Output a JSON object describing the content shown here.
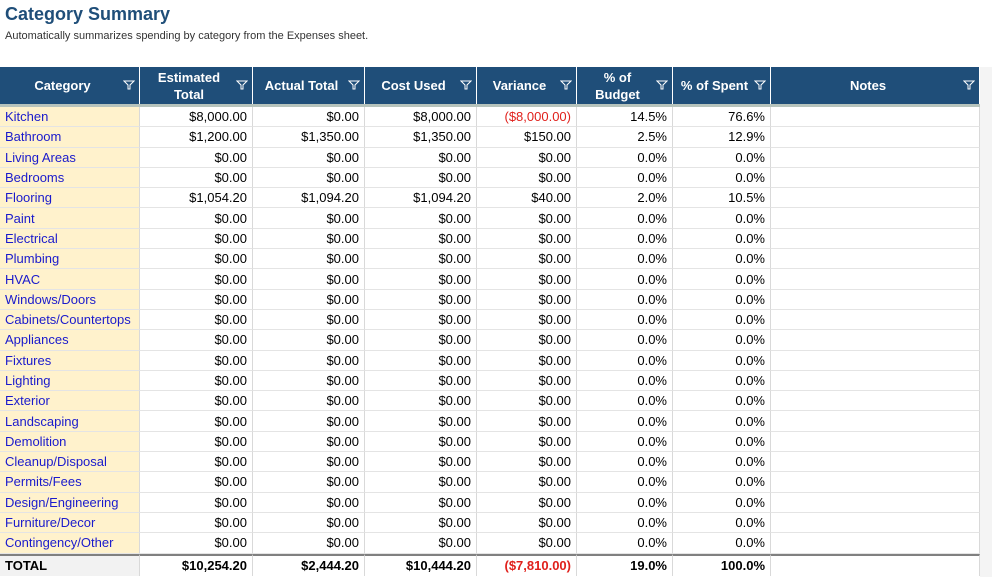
{
  "header": {
    "title": "Category Summary",
    "subtitle": "Automatically summarizes spending by category from the Expenses sheet."
  },
  "table": {
    "columns": [
      "Category",
      "Estimated Total",
      "Actual Total",
      "Cost Used",
      "Variance",
      "% of Budget",
      "% of Spent",
      "Notes"
    ],
    "rows": [
      [
        "Kitchen",
        "$8,000.00",
        "$0.00",
        "$8,000.00",
        "($8,000.00)",
        "14.5%",
        "76.6%"
      ],
      [
        "Bathroom",
        "$1,200.00",
        "$1,350.00",
        "$1,350.00",
        "$150.00",
        "2.5%",
        "12.9%"
      ],
      [
        "Living Areas",
        "$0.00",
        "$0.00",
        "$0.00",
        "$0.00",
        "0.0%",
        "0.0%"
      ],
      [
        "Bedrooms",
        "$0.00",
        "$0.00",
        "$0.00",
        "$0.00",
        "0.0%",
        "0.0%"
      ],
      [
        "Flooring",
        "$1,054.20",
        "$1,094.20",
        "$1,094.20",
        "$40.00",
        "2.0%",
        "10.5%"
      ],
      [
        "Paint",
        "$0.00",
        "$0.00",
        "$0.00",
        "$0.00",
        "0.0%",
        "0.0%"
      ],
      [
        "Electrical",
        "$0.00",
        "$0.00",
        "$0.00",
        "$0.00",
        "0.0%",
        "0.0%"
      ],
      [
        "Plumbing",
        "$0.00",
        "$0.00",
        "$0.00",
        "$0.00",
        "0.0%",
        "0.0%"
      ],
      [
        "HVAC",
        "$0.00",
        "$0.00",
        "$0.00",
        "$0.00",
        "0.0%",
        "0.0%"
      ],
      [
        "Windows/Doors",
        "$0.00",
        "$0.00",
        "$0.00",
        "$0.00",
        "0.0%",
        "0.0%"
      ],
      [
        "Cabinets/Countertops",
        "$0.00",
        "$0.00",
        "$0.00",
        "$0.00",
        "0.0%",
        "0.0%"
      ],
      [
        "Appliances",
        "$0.00",
        "$0.00",
        "$0.00",
        "$0.00",
        "0.0%",
        "0.0%"
      ],
      [
        "Fixtures",
        "$0.00",
        "$0.00",
        "$0.00",
        "$0.00",
        "0.0%",
        "0.0%"
      ],
      [
        "Lighting",
        "$0.00",
        "$0.00",
        "$0.00",
        "$0.00",
        "0.0%",
        "0.0%"
      ],
      [
        "Exterior",
        "$0.00",
        "$0.00",
        "$0.00",
        "$0.00",
        "0.0%",
        "0.0%"
      ],
      [
        "Landscaping",
        "$0.00",
        "$0.00",
        "$0.00",
        "$0.00",
        "0.0%",
        "0.0%"
      ],
      [
        "Demolition",
        "$0.00",
        "$0.00",
        "$0.00",
        "$0.00",
        "0.0%",
        "0.0%"
      ],
      [
        "Cleanup/Disposal",
        "$0.00",
        "$0.00",
        "$0.00",
        "$0.00",
        "0.0%",
        "0.0%"
      ],
      [
        "Permits/Fees",
        "$0.00",
        "$0.00",
        "$0.00",
        "$0.00",
        "0.0%",
        "0.0%"
      ],
      [
        "Design/Engineering",
        "$0.00",
        "$0.00",
        "$0.00",
        "$0.00",
        "0.0%",
        "0.0%"
      ],
      [
        "Furniture/Decor",
        "$0.00",
        "$0.00",
        "$0.00",
        "$0.00",
        "0.0%",
        "0.0%"
      ],
      [
        "Contingency/Other",
        "$0.00",
        "$0.00",
        "$0.00",
        "$0.00",
        "0.0%",
        "0.0%"
      ]
    ],
    "total": [
      "TOTAL",
      "$10,254.20",
      "$2,444.20",
      "$10,444.20",
      "($7,810.00)",
      "19.0%",
      "100.0%"
    ]
  }
}
